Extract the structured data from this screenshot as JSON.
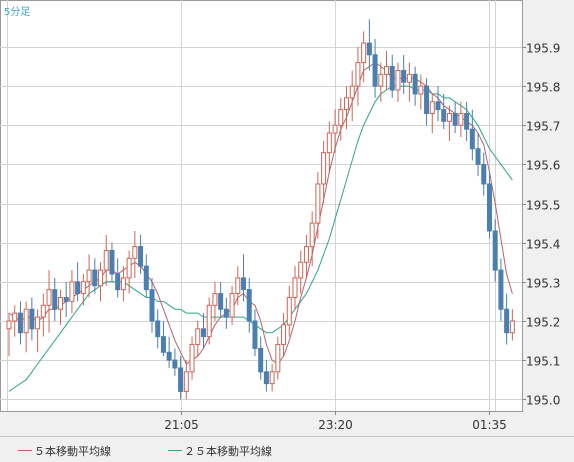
{
  "chart_data": {
    "type": "candlestick",
    "timeframe_label": "5分足",
    "ylim": [
      194.97,
      196.02
    ],
    "y_ticks": [
      "195.0",
      "195.1",
      "195.2",
      "195.3",
      "195.4",
      "195.5",
      "195.6",
      "195.7",
      "195.8",
      "195.9"
    ],
    "x_ticks": [
      {
        "label": "21:05",
        "index": 30
      },
      {
        "label": "23:20",
        "index": 57
      },
      {
        "label": "01:35",
        "index": 84
      }
    ],
    "grid": true,
    "legend_position": "bottom-left",
    "up_color": "#ffffff",
    "up_border_color": "#cc6655",
    "down_color": "#4a7fb0",
    "down_border_color": "#4a7fb0",
    "candles": [
      [
        195.18,
        195.22,
        195.11,
        195.2
      ],
      [
        195.2,
        195.24,
        195.16,
        195.22
      ],
      [
        195.22,
        195.25,
        195.14,
        195.17
      ],
      [
        195.17,
        195.25,
        195.12,
        195.23
      ],
      [
        195.23,
        195.26,
        195.15,
        195.18
      ],
      [
        195.18,
        195.23,
        195.12,
        195.21
      ],
      [
        195.21,
        195.27,
        195.16,
        195.24
      ],
      [
        195.24,
        195.33,
        195.17,
        195.28
      ],
      [
        195.28,
        195.31,
        195.2,
        195.23
      ],
      [
        195.23,
        195.28,
        195.19,
        195.26
      ],
      [
        195.26,
        195.3,
        195.21,
        195.25
      ],
      [
        195.25,
        195.33,
        195.22,
        195.3
      ],
      [
        195.3,
        195.35,
        195.25,
        195.27
      ],
      [
        195.27,
        195.32,
        195.24,
        195.3
      ],
      [
        195.3,
        195.37,
        195.26,
        195.33
      ],
      [
        195.33,
        195.36,
        195.27,
        195.29
      ],
      [
        195.29,
        195.35,
        195.25,
        195.33
      ],
      [
        195.33,
        195.42,
        195.29,
        195.38
      ],
      [
        195.38,
        195.4,
        195.3,
        195.32
      ],
      [
        195.32,
        195.36,
        195.26,
        195.28
      ],
      [
        195.28,
        195.34,
        195.25,
        195.31
      ],
      [
        195.31,
        195.38,
        195.27,
        195.36
      ],
      [
        195.36,
        195.43,
        195.31,
        195.39
      ],
      [
        195.39,
        195.42,
        195.32,
        195.34
      ],
      [
        195.34,
        195.37,
        195.26,
        195.28
      ],
      [
        195.28,
        195.31,
        195.17,
        195.2
      ],
      [
        195.2,
        195.23,
        195.13,
        195.16
      ],
      [
        195.16,
        195.2,
        195.11,
        195.12
      ],
      [
        195.12,
        195.16,
        195.08,
        195.1
      ],
      [
        195.1,
        195.13,
        195.06,
        195.08
      ],
      [
        195.08,
        195.11,
        195.0,
        195.02
      ],
      [
        195.02,
        195.1,
        195.0,
        195.07
      ],
      [
        195.07,
        195.16,
        195.05,
        195.14
      ],
      [
        195.14,
        195.2,
        195.11,
        195.18
      ],
      [
        195.18,
        195.22,
        195.13,
        195.16
      ],
      [
        195.16,
        195.26,
        195.14,
        195.24
      ],
      [
        195.24,
        195.3,
        195.2,
        195.27
      ],
      [
        195.27,
        195.3,
        195.21,
        195.23
      ],
      [
        195.23,
        195.26,
        195.18,
        195.21
      ],
      [
        195.21,
        195.29,
        195.19,
        195.27
      ],
      [
        195.27,
        195.34,
        195.24,
        195.31
      ],
      [
        195.31,
        195.37,
        195.25,
        195.28
      ],
      [
        195.28,
        195.31,
        195.17,
        195.2
      ],
      [
        195.2,
        195.23,
        195.11,
        195.13
      ],
      [
        195.13,
        195.16,
        195.05,
        195.07
      ],
      [
        195.07,
        195.1,
        195.02,
        195.04
      ],
      [
        195.04,
        195.09,
        195.02,
        195.07
      ],
      [
        195.07,
        195.16,
        195.05,
        195.14
      ],
      [
        195.14,
        195.22,
        195.11,
        195.19
      ],
      [
        195.19,
        195.29,
        195.16,
        195.26
      ],
      [
        195.26,
        195.34,
        195.23,
        195.31
      ],
      [
        195.31,
        195.38,
        195.27,
        195.35
      ],
      [
        195.35,
        195.42,
        195.31,
        195.39
      ],
      [
        195.39,
        195.48,
        195.34,
        195.45
      ],
      [
        195.45,
        195.58,
        195.41,
        195.55
      ],
      [
        195.55,
        195.66,
        195.5,
        195.63
      ],
      [
        195.63,
        195.71,
        195.58,
        195.68
      ],
      [
        195.68,
        195.74,
        195.63,
        195.7
      ],
      [
        195.7,
        195.77,
        195.66,
        195.74
      ],
      [
        195.74,
        195.8,
        195.69,
        195.77
      ],
      [
        195.77,
        195.84,
        195.71,
        195.8
      ],
      [
        195.8,
        195.9,
        195.75,
        195.86
      ],
      [
        195.86,
        195.94,
        195.81,
        195.91
      ],
      [
        195.91,
        195.97,
        195.84,
        195.88
      ],
      [
        195.88,
        195.92,
        195.77,
        195.8
      ],
      [
        195.8,
        195.86,
        195.76,
        195.83
      ],
      [
        195.83,
        195.89,
        195.79,
        195.85
      ],
      [
        195.85,
        195.88,
        195.77,
        195.79
      ],
      [
        195.79,
        195.86,
        195.76,
        195.84
      ],
      [
        195.84,
        195.88,
        195.78,
        195.81
      ],
      [
        195.81,
        195.86,
        195.76,
        195.83
      ],
      [
        195.83,
        195.85,
        195.75,
        195.78
      ],
      [
        195.78,
        195.83,
        195.74,
        195.8
      ],
      [
        195.8,
        195.82,
        195.7,
        195.73
      ],
      [
        195.73,
        195.78,
        195.68,
        195.76
      ],
      [
        195.76,
        195.8,
        195.71,
        195.74
      ],
      [
        195.74,
        195.78,
        195.69,
        195.71
      ],
      [
        195.71,
        195.75,
        195.66,
        195.73
      ],
      [
        195.73,
        195.76,
        195.68,
        195.7
      ],
      [
        195.7,
        195.76,
        195.67,
        195.73
      ],
      [
        195.73,
        195.76,
        195.66,
        195.69
      ],
      [
        195.69,
        195.74,
        195.61,
        195.64
      ],
      [
        195.64,
        195.68,
        195.57,
        195.6
      ],
      [
        195.6,
        195.63,
        195.52,
        195.55
      ],
      [
        195.55,
        195.58,
        195.41,
        195.43
      ],
      [
        195.43,
        195.46,
        195.3,
        195.33
      ],
      [
        195.33,
        195.36,
        195.2,
        195.23
      ],
      [
        195.23,
        195.27,
        195.14,
        195.17
      ],
      [
        195.17,
        195.23,
        195.15,
        195.2
      ]
    ],
    "sma5": [
      195.22,
      195.21,
      195.2,
      195.21,
      195.21,
      195.2,
      195.21,
      195.23,
      195.23,
      195.24,
      195.25,
      195.26,
      195.27,
      195.28,
      195.29,
      195.3,
      195.31,
      195.33,
      195.33,
      195.32,
      195.33,
      195.34,
      195.35,
      195.34,
      195.32,
      195.3,
      195.27,
      195.23,
      195.19,
      195.15,
      195.12,
      195.09,
      195.1,
      195.11,
      195.13,
      195.16,
      195.19,
      195.21,
      195.22,
      195.23,
      195.26,
      195.27,
      195.25,
      195.24,
      195.2,
      195.14,
      195.1,
      195.09,
      195.11,
      195.15,
      195.2,
      195.26,
      195.31,
      195.37,
      195.44,
      195.51,
      195.58,
      195.64,
      195.69,
      195.72,
      195.76,
      195.8,
      195.84,
      195.85,
      195.86,
      195.85,
      195.84,
      195.82,
      195.82,
      195.82,
      195.82,
      195.82,
      195.81,
      195.8,
      195.78,
      195.77,
      195.75,
      195.74,
      195.73,
      195.72,
      195.71,
      195.7,
      195.68,
      195.65,
      195.58,
      195.5,
      195.41,
      195.32,
      195.27
    ],
    "sma25": [
      195.02,
      195.03,
      195.04,
      195.05,
      195.07,
      195.09,
      195.11,
      195.13,
      195.15,
      195.17,
      195.19,
      195.21,
      195.23,
      195.25,
      195.27,
      195.28,
      195.29,
      195.3,
      195.3,
      195.3,
      195.3,
      195.29,
      195.28,
      195.27,
      195.26,
      195.26,
      195.25,
      195.25,
      195.24,
      195.23,
      195.23,
      195.22,
      195.22,
      195.22,
      195.21,
      195.21,
      195.21,
      195.21,
      195.21,
      195.21,
      195.21,
      195.21,
      195.2,
      195.19,
      195.18,
      195.17,
      195.17,
      195.18,
      195.19,
      195.21,
      195.23,
      195.25,
      195.27,
      195.3,
      195.33,
      195.37,
      195.41,
      195.46,
      195.51,
      195.56,
      195.61,
      195.66,
      195.7,
      195.73,
      195.76,
      195.78,
      195.79,
      195.8,
      195.8,
      195.8,
      195.8,
      195.79,
      195.79,
      195.79,
      195.78,
      195.78,
      195.77,
      195.77,
      195.76,
      195.75,
      195.74,
      195.72,
      195.7,
      195.67,
      195.64,
      195.62,
      195.6,
      195.58,
      195.56
    ],
    "legend": [
      {
        "name": "５本移動平均線",
        "color": "#b5626a"
      },
      {
        "name": "２５本移動平均線",
        "color": "#2fa58a"
      }
    ]
  }
}
